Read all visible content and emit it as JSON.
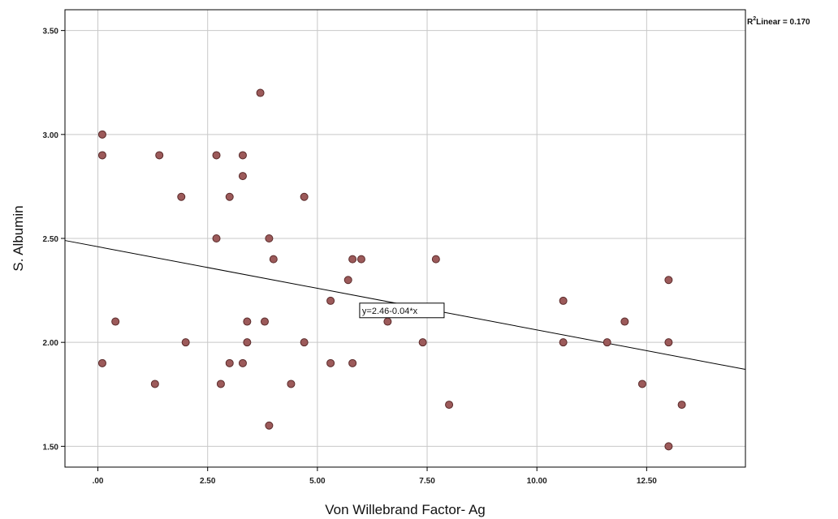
{
  "chart_data": {
    "type": "scatter",
    "xlabel": "Von Willebrand Factor- Ag",
    "ylabel": "S. Albumin",
    "xlim": [
      -0.75,
      14.75
    ],
    "ylim": [
      1.4,
      3.6
    ],
    "xticks": [
      0,
      2.5,
      5,
      7.5,
      10,
      12.5
    ],
    "xtick_labels": [
      ".00",
      "2.50",
      "5.00",
      "7.50",
      "10.00",
      "12.50"
    ],
    "yticks": [
      1.5,
      2.0,
      2.5,
      3.0,
      3.5
    ],
    "ytick_labels": [
      "1.50",
      "2.00",
      "2.50",
      "3.00",
      "3.50"
    ],
    "grid": true,
    "marker_color": "#9c5a5a",
    "marker_edge": "#5a2a2a",
    "r2_label": "Linear = 0.170",
    "fit_line": {
      "intercept": 2.46,
      "slope": -0.04,
      "label": "y=2.46-0.04*x"
    },
    "points": [
      {
        "x": 0.1,
        "y": 3.0
      },
      {
        "x": 0.1,
        "y": 2.9
      },
      {
        "x": 0.1,
        "y": 1.9
      },
      {
        "x": 0.4,
        "y": 2.1
      },
      {
        "x": 1.3,
        "y": 1.8
      },
      {
        "x": 1.4,
        "y": 2.9
      },
      {
        "x": 1.9,
        "y": 2.7
      },
      {
        "x": 2.0,
        "y": 2.0
      },
      {
        "x": 2.7,
        "y": 2.9
      },
      {
        "x": 2.7,
        "y": 2.5
      },
      {
        "x": 2.8,
        "y": 1.8
      },
      {
        "x": 3.0,
        "y": 2.7
      },
      {
        "x": 3.0,
        "y": 1.9
      },
      {
        "x": 3.3,
        "y": 2.9
      },
      {
        "x": 3.3,
        "y": 2.8
      },
      {
        "x": 3.3,
        "y": 1.9
      },
      {
        "x": 3.4,
        "y": 2.1
      },
      {
        "x": 3.4,
        "y": 2.0
      },
      {
        "x": 3.7,
        "y": 3.2
      },
      {
        "x": 3.8,
        "y": 2.1
      },
      {
        "x": 3.9,
        "y": 2.5
      },
      {
        "x": 3.9,
        "y": 1.6
      },
      {
        "x": 4.0,
        "y": 2.4
      },
      {
        "x": 4.4,
        "y": 1.8
      },
      {
        "x": 4.7,
        "y": 2.7
      },
      {
        "x": 4.7,
        "y": 2.0
      },
      {
        "x": 5.3,
        "y": 2.2
      },
      {
        "x": 5.3,
        "y": 1.9
      },
      {
        "x": 5.7,
        "y": 2.3
      },
      {
        "x": 5.8,
        "y": 2.4
      },
      {
        "x": 5.8,
        "y": 1.9
      },
      {
        "x": 6.0,
        "y": 2.4
      },
      {
        "x": 6.6,
        "y": 2.1
      },
      {
        "x": 7.4,
        "y": 2.0
      },
      {
        "x": 7.7,
        "y": 2.4
      },
      {
        "x": 8.0,
        "y": 1.7
      },
      {
        "x": 10.6,
        "y": 2.2
      },
      {
        "x": 10.6,
        "y": 2.0
      },
      {
        "x": 11.6,
        "y": 2.0
      },
      {
        "x": 12.0,
        "y": 2.1
      },
      {
        "x": 12.4,
        "y": 1.8
      },
      {
        "x": 13.0,
        "y": 2.3
      },
      {
        "x": 13.0,
        "y": 2.0
      },
      {
        "x": 13.0,
        "y": 1.5
      },
      {
        "x": 13.3,
        "y": 1.7
      }
    ]
  }
}
